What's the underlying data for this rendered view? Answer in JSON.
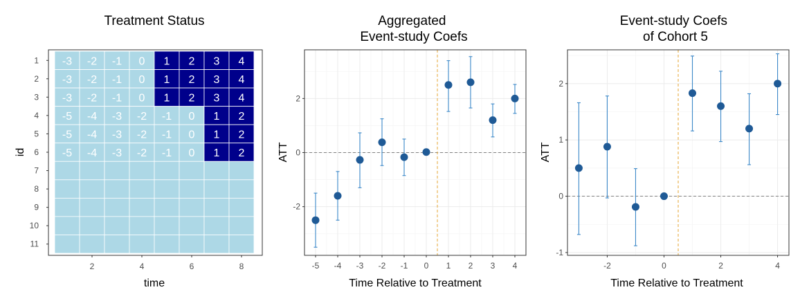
{
  "chart_data": [
    {
      "type": "heatmap",
      "title": "Treatment Status",
      "xlabel": "time",
      "ylabel": "id",
      "x_ticks": [
        2,
        4,
        6,
        8
      ],
      "xlim": [
        0.5,
        8.5
      ],
      "y_categories": [
        "1",
        "2",
        "3",
        "4",
        "5",
        "6",
        "7",
        "8",
        "9",
        "10",
        "11"
      ],
      "colors": {
        "untreated": "#add8e6",
        "treated": "#00008b",
        "label": "#ffffff"
      },
      "rows": [
        {
          "id": "1",
          "labels": [
            "-3",
            "-2",
            "-1",
            "0",
            "1",
            "2",
            "3",
            "4"
          ],
          "treated": [
            0,
            0,
            0,
            0,
            1,
            1,
            1,
            1
          ]
        },
        {
          "id": "2",
          "labels": [
            "-3",
            "-2",
            "-1",
            "0",
            "1",
            "2",
            "3",
            "4"
          ],
          "treated": [
            0,
            0,
            0,
            0,
            1,
            1,
            1,
            1
          ]
        },
        {
          "id": "3",
          "labels": [
            "-3",
            "-2",
            "-1",
            "0",
            "1",
            "2",
            "3",
            "4"
          ],
          "treated": [
            0,
            0,
            0,
            0,
            1,
            1,
            1,
            1
          ]
        },
        {
          "id": "4",
          "labels": [
            "-5",
            "-4",
            "-3",
            "-2",
            "-1",
            "0",
            "1",
            "2"
          ],
          "treated": [
            0,
            0,
            0,
            0,
            0,
            0,
            1,
            1
          ]
        },
        {
          "id": "5",
          "labels": [
            "-5",
            "-4",
            "-3",
            "-2",
            "-1",
            "0",
            "1",
            "2"
          ],
          "treated": [
            0,
            0,
            0,
            0,
            0,
            0,
            1,
            1
          ]
        },
        {
          "id": "6",
          "labels": [
            "-5",
            "-4",
            "-3",
            "-2",
            "-1",
            "0",
            "1",
            "2"
          ],
          "treated": [
            0,
            0,
            0,
            0,
            0,
            0,
            1,
            1
          ]
        },
        {
          "id": "7",
          "labels": [],
          "treated": [
            0,
            0,
            0,
            0,
            0,
            0,
            0,
            0
          ]
        },
        {
          "id": "8",
          "labels": [],
          "treated": [
            0,
            0,
            0,
            0,
            0,
            0,
            0,
            0
          ]
        },
        {
          "id": "9",
          "labels": [],
          "treated": [
            0,
            0,
            0,
            0,
            0,
            0,
            0,
            0
          ]
        },
        {
          "id": "10",
          "labels": [],
          "treated": [
            0,
            0,
            0,
            0,
            0,
            0,
            0,
            0
          ]
        },
        {
          "id": "11",
          "labels": [],
          "treated": [
            0,
            0,
            0,
            0,
            0,
            0,
            0,
            0
          ]
        }
      ]
    },
    {
      "type": "scatter",
      "title_lines": [
        "Aggregated",
        "Event-study Coefs"
      ],
      "xlabel": "Time Relative to Treatment",
      "ylabel": "ATT",
      "xlim": [
        -5.5,
        4.5
      ],
      "ylim": [
        -3.8,
        3.8
      ],
      "x_ticks": [
        -5,
        -4,
        -3,
        -2,
        -1,
        0,
        1,
        2,
        3,
        4
      ],
      "y_ticks": [
        -2,
        0,
        2
      ],
      "hline": 0,
      "vline": 0.5,
      "colors": {
        "point": "#1f5a96",
        "errorbar": "#3a87c8",
        "hline": "#808080",
        "vline": "#e6a530"
      },
      "x": [
        -5,
        -4,
        -3,
        -2,
        -1,
        0,
        1,
        2,
        3,
        4
      ],
      "y": [
        -2.5,
        -1.6,
        -0.27,
        0.38,
        -0.17,
        0.02,
        2.5,
        2.6,
        1.2,
        2.0
      ],
      "lower": [
        -3.5,
        -2.5,
        -1.3,
        -0.48,
        -0.85,
        0.02,
        1.52,
        1.65,
        0.58,
        1.45
      ],
      "upper": [
        -1.5,
        -0.7,
        0.73,
        1.25,
        0.5,
        0.02,
        3.4,
        3.55,
        1.8,
        2.52
      ]
    },
    {
      "type": "scatter",
      "title_lines": [
        "Event-study Coefs",
        "of Cohort 5"
      ],
      "xlabel": "Time Relative to Treatment",
      "ylabel": "ATT",
      "xlim": [
        -3.4,
        4.4
      ],
      "ylim": [
        -1.05,
        2.6
      ],
      "x_ticks": [
        -2,
        0,
        2,
        4
      ],
      "y_ticks": [
        -1,
        0,
        1,
        2
      ],
      "hline": 0,
      "vline": 0.5,
      "colors": {
        "point": "#1f5a96",
        "errorbar": "#3a87c8",
        "hline": "#808080",
        "vline": "#e6a530"
      },
      "x": [
        -3,
        -2,
        -1,
        0,
        1,
        2,
        3,
        4
      ],
      "y": [
        0.5,
        0.88,
        -0.19,
        0.0,
        1.83,
        1.6,
        1.2,
        2.0
      ],
      "lower": [
        -0.68,
        -0.03,
        -0.88,
        0.0,
        1.16,
        0.97,
        0.56,
        1.45
      ],
      "upper": [
        1.66,
        1.78,
        0.49,
        0.0,
        2.49,
        2.22,
        1.82,
        2.53
      ]
    }
  ]
}
